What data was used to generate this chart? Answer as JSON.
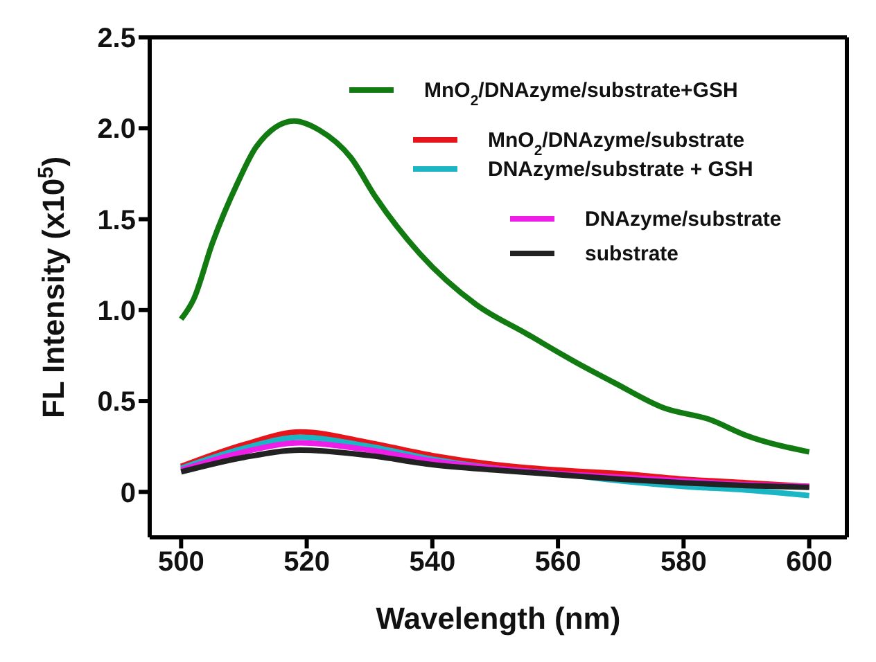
{
  "chart_data": {
    "type": "line",
    "xlabel": "Wavelength (nm)",
    "ylabel": "FL Intensity (x10$^{5}$)",
    "xlim": [
      495,
      606
    ],
    "xticks": [
      500,
      520,
      540,
      560,
      580,
      600
    ],
    "ylim": [
      -0.25,
      2.5
    ],
    "yticks": [
      {
        "value": 0,
        "label": "0"
      },
      0.5,
      {
        "value": 1,
        "label": "1.0"
      },
      1.5,
      {
        "value": 2,
        "label": "2.0"
      },
      2.5
    ],
    "grid": false,
    "legend": "top right",
    "marker": "none",
    "line_style": "solid",
    "series": [
      {
        "name": "MnO$_{2}$/DNAzyme/substrate+GSH",
        "color": "#117a11",
        "x": [
          500,
          502,
          505,
          509,
          512,
          518,
          522,
          527,
          531,
          538,
          547,
          555,
          563,
          569,
          577,
          584,
          590,
          600
        ],
        "values": [
          0.95,
          1.06,
          1.37,
          1.7,
          1.9,
          2.04,
          1.99,
          1.84,
          1.62,
          1.31,
          1.03,
          0.87,
          0.71,
          0.6,
          0.46,
          0.4,
          0.31,
          0.22
        ]
      },
      {
        "name": "MnO$_{2}$/DNAzyme/substrate",
        "color": "#e8141b",
        "x": [
          500,
          510,
          519,
          530,
          540,
          550,
          560,
          570,
          580,
          590,
          600
        ],
        "values": [
          0.14,
          0.26,
          0.33,
          0.27,
          0.2,
          0.15,
          0.12,
          0.1,
          0.07,
          0.05,
          0.03
        ]
      },
      {
        "name": "DNAzyme/substrate + GSH",
        "color": "#1ab6c4",
        "x": [
          500,
          510,
          519,
          530,
          540,
          550,
          560,
          570,
          580,
          590,
          600
        ],
        "values": [
          0.13,
          0.24,
          0.3,
          0.25,
          0.18,
          0.13,
          0.1,
          0.06,
          0.03,
          0.01,
          -0.02
        ]
      },
      {
        "name": "DNAzyme/substrate",
        "color": "#ee1ee8",
        "x": [
          500,
          510,
          519,
          530,
          540,
          550,
          560,
          570,
          580,
          590,
          600
        ],
        "values": [
          0.12,
          0.22,
          0.27,
          0.23,
          0.17,
          0.13,
          0.1,
          0.08,
          0.06,
          0.04,
          0.03
        ]
      },
      {
        "name": "substrate",
        "color": "#222222",
        "x": [
          500,
          510,
          519,
          530,
          540,
          550,
          560,
          570,
          580,
          590,
          600
        ],
        "values": [
          0.11,
          0.19,
          0.23,
          0.2,
          0.15,
          0.12,
          0.095,
          0.07,
          0.05,
          0.035,
          0.025
        ]
      }
    ]
  }
}
